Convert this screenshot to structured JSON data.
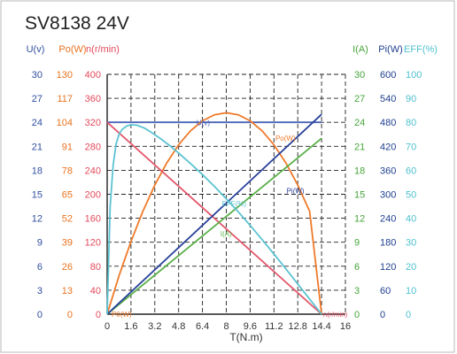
{
  "chart_data": {
    "type": "line",
    "title": "SV8138 24V",
    "xlabel": "T(N.m)",
    "xlim": [
      0,
      16
    ],
    "x_ticks": [
      "0",
      "1.6",
      "3.2",
      "4.8",
      "6.4",
      "8",
      "9.6",
      "11.2",
      "12.8",
      "14.4",
      "16"
    ],
    "grid": true,
    "left_axes": [
      {
        "key": "u",
        "header": "U(v)",
        "ticks": [
          "0",
          "3",
          "6",
          "9",
          "12",
          "15",
          "18",
          "21",
          "24",
          "27",
          "30"
        ],
        "color": "#2f4fa0"
      },
      {
        "key": "po",
        "header": "Po(W)",
        "ticks": [
          "0",
          "13",
          "26",
          "39",
          "52",
          "65",
          "78",
          "91",
          "104",
          "117",
          "130"
        ],
        "color": "#e8731f"
      },
      {
        "key": "n",
        "header": "n(r/min)",
        "ticks": [
          "0",
          "40",
          "80",
          "120",
          "160",
          "200",
          "240",
          "280",
          "320",
          "360",
          "400"
        ],
        "color": "#e34a5c"
      }
    ],
    "right_axes": [
      {
        "key": "i",
        "header": "I(A)",
        "ticks": [
          "0",
          "3",
          "6",
          "9",
          "12",
          "15",
          "18",
          "21",
          "24",
          "27",
          "30"
        ],
        "color": "#45a53a"
      },
      {
        "key": "pi",
        "header": "Pi(W)",
        "ticks": [
          "0",
          "60",
          "120",
          "180",
          "240",
          "300",
          "360",
          "420",
          "480",
          "540",
          "600"
        ],
        "color": "#1f3f8f"
      },
      {
        "key": "eff",
        "header": "EFF(%)",
        "ticks": [
          "0",
          "10",
          "20",
          "30",
          "40",
          "50",
          "60",
          "70",
          "80",
          "90",
          "100"
        ],
        "color": "#4fc0cf"
      }
    ],
    "series": [
      {
        "name": "U(v)",
        "axis": "u",
        "color": "#4a63b8",
        "x": [
          0,
          14.4
        ],
        "y": [
          24,
          24
        ]
      },
      {
        "name": "Po(W)",
        "axis": "po",
        "color": "#ef7a2a",
        "x": [
          0,
          0.8,
          1.6,
          2.4,
          3.2,
          4.0,
          4.8,
          5.6,
          6.4,
          7.2,
          8.0,
          8.8,
          9.6,
          10.4,
          11.2,
          12.0,
          12.8,
          13.6,
          14.4
        ],
        "y": [
          0,
          20.8,
          39.4,
          55.8,
          70.0,
          82.0,
          91.8,
          99.4,
          104.8,
          108.1,
          109.2,
          108.1,
          104.8,
          99.4,
          91.8,
          82.0,
          70.0,
          55.8,
          0
        ]
      },
      {
        "name": "n(r/min)",
        "axis": "n",
        "color": "#e2546a",
        "x": [
          0,
          14.4
        ],
        "y": [
          320,
          0
        ]
      },
      {
        "name": "I(A)",
        "axis": "i",
        "color": "#5bb04a",
        "x": [
          0,
          14.4
        ],
        "y": [
          0,
          22
        ]
      },
      {
        "name": "Pi(W)",
        "axis": "pi",
        "color": "#28419a",
        "x": [
          0,
          14.4
        ],
        "y": [
          0,
          500
        ]
      },
      {
        "name": "EFF(%)",
        "axis": "eff",
        "color": "#5cc3d2",
        "x": [
          0,
          0.2,
          0.4,
          0.6,
          0.8,
          1.0,
          1.3,
          1.6,
          2.0,
          2.5,
          3.0,
          3.6,
          4.2,
          4.8,
          5.6,
          6.4,
          7.2,
          8.0,
          8.8,
          9.6,
          10.4,
          11.2,
          12.0,
          12.8,
          13.6,
          14.4
        ],
        "y": [
          0,
          45,
          62,
          71,
          75,
          77,
          78.4,
          79,
          78.8,
          77.6,
          75.7,
          73.1,
          70.3,
          67.2,
          62.8,
          58.2,
          53.3,
          48.1,
          42.7,
          37.0,
          31.1,
          25.1,
          18.9,
          12.6,
          6.3,
          0
        ]
      }
    ],
    "annotations": [
      {
        "text": "U(v)",
        "x": 6.0,
        "y_frac": 0.798,
        "color": "#4a63b8"
      },
      {
        "text": "Po(W)",
        "x": 11.3,
        "y_frac": 0.735,
        "color": "#ef7a2a"
      },
      {
        "text": "Pi(W)",
        "x": 12.05,
        "y_frac": 0.515,
        "color": "#28419a"
      },
      {
        "text": "EFF(%)",
        "x": 7.7,
        "y_frac": 0.462,
        "color": "#5cc3d2"
      },
      {
        "text": "I(A)",
        "x": 7.6,
        "y_frac": 0.335,
        "color": "#5bb04a"
      },
      {
        "text": "P0(W)",
        "x": 0.3,
        "y_frac": 0.0,
        "color": "#ef7a2a"
      },
      {
        "text": "n(r/min)",
        "x": 14.5,
        "y_frac": 0.0,
        "color": "#e2546a"
      }
    ]
  }
}
